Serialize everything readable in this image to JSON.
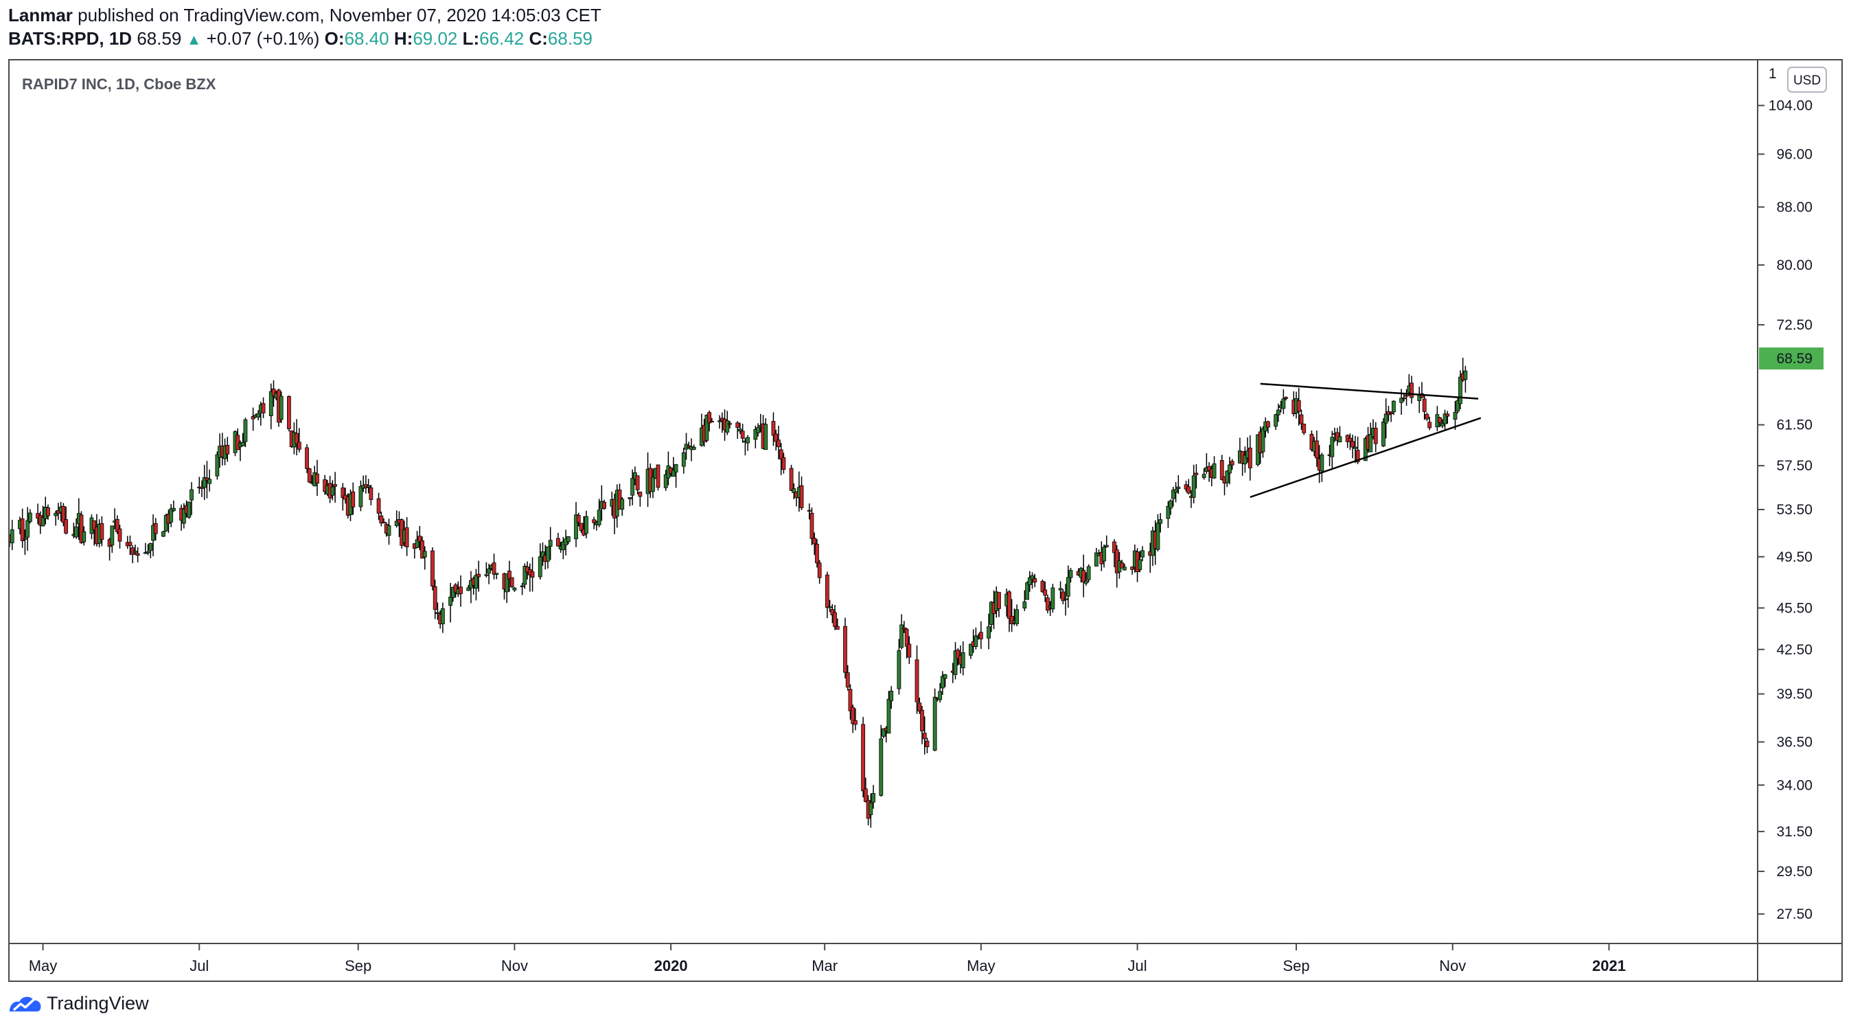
{
  "header": {
    "publisher": "Lanmar",
    "published_text": "published on TradingView.com, November 07, 2020 14:05:03 CET",
    "symbol": "BATS:RPD, 1D",
    "last": "68.59",
    "change": "+0.07 (+0.1%)",
    "o_label": "O:",
    "o_val": "68.40",
    "h_label": "H:",
    "h_val": "69.02",
    "l_label": "L:",
    "l_val": "66.42",
    "c_label": "C:",
    "c_val": "68.59"
  },
  "footer": {
    "brand": "TradingView"
  },
  "colors": {
    "up": "#26a69a",
    "down": "#ef5350",
    "up_candle": "#2e7d32",
    "down_candle": "#c62828",
    "price_badge": "#4caf50"
  },
  "chart_data": {
    "type": "candlestick",
    "title": "RAPID7 INC, 1D, Cboe BZX",
    "currency": "USD",
    "y_scale": "log",
    "ylim": [
      26.2,
      112
    ],
    "y_ticks": [
      "104.00",
      "96.00",
      "88.00",
      "80.00",
      "72.50",
      "61.50",
      "57.50",
      "53.50",
      "49.50",
      "45.50",
      "42.50",
      "39.50",
      "36.50",
      "34.00",
      "31.50",
      "29.50",
      "27.50"
    ],
    "y_tick_top_partial": "1",
    "last_price_label": "68.59",
    "x_range": [
      "2019-04-18",
      "2021-02-28"
    ],
    "x_ticks": [
      {
        "label": "May",
        "date": "2019-05-01",
        "bold": false
      },
      {
        "label": "Jul",
        "date": "2019-07-01",
        "bold": false
      },
      {
        "label": "Sep",
        "date": "2019-09-01",
        "bold": false
      },
      {
        "label": "Nov",
        "date": "2019-11-01",
        "bold": false
      },
      {
        "label": "2020",
        "date": "2020-01-01",
        "bold": true
      },
      {
        "label": "Mar",
        "date": "2020-03-01",
        "bold": false
      },
      {
        "label": "May",
        "date": "2020-05-01",
        "bold": false
      },
      {
        "label": "Jul",
        "date": "2020-07-01",
        "bold": false
      },
      {
        "label": "Sep",
        "date": "2020-09-01",
        "bold": false
      },
      {
        "label": "Nov",
        "date": "2020-11-01",
        "bold": false
      },
      {
        "label": "2021",
        "date": "2021-01-01",
        "bold": true
      }
    ],
    "price_path": [
      [
        "2019-04-18",
        51.0
      ],
      [
        "2019-05-01",
        53.5
      ],
      [
        "2019-05-15",
        52.0
      ],
      [
        "2019-05-28",
        51.5
      ],
      [
        "2019-06-06",
        49.0
      ],
      [
        "2019-06-20",
        53.0
      ],
      [
        "2019-07-01",
        55.0
      ],
      [
        "2019-07-10",
        58.5
      ],
      [
        "2019-07-20",
        61.5
      ],
      [
        "2019-07-31",
        64.0
      ],
      [
        "2019-08-05",
        61.0
      ],
      [
        "2019-08-12",
        57.0
      ],
      [
        "2019-08-26",
        54.0
      ],
      [
        "2019-09-05",
        55.5
      ],
      [
        "2019-09-12",
        52.0
      ],
      [
        "2019-09-24",
        50.5
      ],
      [
        "2019-10-03",
        45.0
      ],
      [
        "2019-10-10",
        47.5
      ],
      [
        "2019-10-20",
        49.0
      ],
      [
        "2019-11-01",
        47.0
      ],
      [
        "2019-11-15",
        50.0
      ],
      [
        "2019-12-01",
        53.0
      ],
      [
        "2019-12-12",
        54.5
      ],
      [
        "2019-12-20",
        56.0
      ],
      [
        "2020-01-01",
        56.5
      ],
      [
        "2020-01-10",
        60.0
      ],
      [
        "2020-01-17",
        61.5
      ],
      [
        "2020-01-31",
        60.0
      ],
      [
        "2020-02-07",
        61.0
      ],
      [
        "2020-02-13",
        58.0
      ],
      [
        "2020-02-24",
        52.0
      ],
      [
        "2020-02-28",
        48.0
      ],
      [
        "2020-03-06",
        44.0
      ],
      [
        "2020-03-12",
        38.0
      ],
      [
        "2020-03-18",
        32.0
      ],
      [
        "2020-03-24",
        37.0
      ],
      [
        "2020-03-31",
        44.0
      ],
      [
        "2020-04-06",
        39.0
      ],
      [
        "2020-04-09",
        36.0
      ],
      [
        "2020-04-17",
        41.0
      ],
      [
        "2020-04-30",
        44.0
      ],
      [
        "2020-05-08",
        46.0
      ],
      [
        "2020-05-14",
        45.0
      ],
      [
        "2020-05-21",
        48.5
      ],
      [
        "2020-05-27",
        46.0
      ],
      [
        "2020-06-08",
        48.0
      ],
      [
        "2020-06-19",
        50.0
      ],
      [
        "2020-06-25",
        48.0
      ],
      [
        "2020-07-08",
        51.0
      ],
      [
        "2020-07-15",
        54.5
      ],
      [
        "2020-07-24",
        55.5
      ],
      [
        "2020-07-31",
        56.5
      ],
      [
        "2020-08-10",
        57.5
      ],
      [
        "2020-08-24",
        62.0
      ],
      [
        "2020-09-01",
        64.0
      ],
      [
        "2020-09-04",
        60.0
      ],
      [
        "2020-09-10",
        58.5
      ],
      [
        "2020-09-18",
        60.0
      ],
      [
        "2020-09-24",
        58.5
      ],
      [
        "2020-10-01",
        60.0
      ],
      [
        "2020-10-09",
        64.0
      ],
      [
        "2020-10-15",
        65.0
      ],
      [
        "2020-10-22",
        63.0
      ],
      [
        "2020-10-28",
        61.5
      ],
      [
        "2020-11-02",
        62.5
      ],
      [
        "2020-11-04",
        67.5
      ],
      [
        "2020-11-06",
        68.59
      ]
    ],
    "trendlines": [
      {
        "from": [
          "2020-08-18",
          65.8
        ],
        "to": [
          "2020-11-11",
          64.2
        ]
      },
      {
        "from": [
          "2020-08-14",
          54.6
        ],
        "to": [
          "2020-11-12",
          62.2
        ]
      }
    ],
    "grid": false,
    "legend": "none"
  }
}
